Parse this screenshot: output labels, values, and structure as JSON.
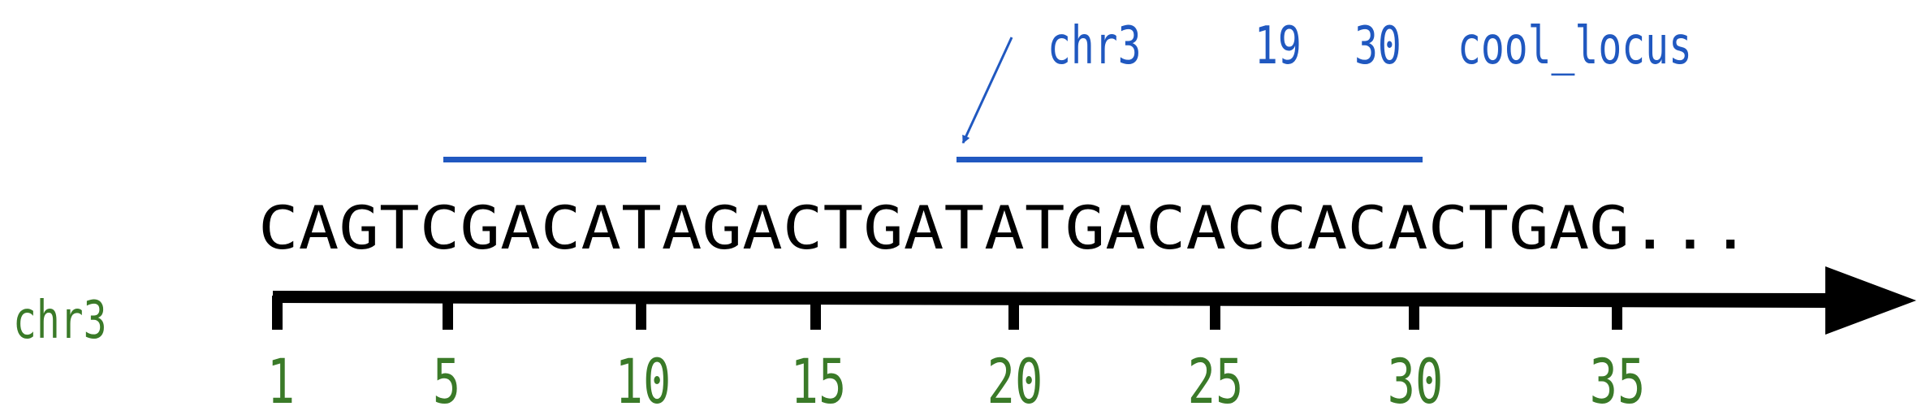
{
  "annotation": {
    "chrom": "chr3",
    "start": "19",
    "end": "30",
    "name": "cool_locus",
    "color": "#2058c0"
  },
  "sequence": "CAGTCGACATAGACTGATATGACACCACACTGAG...",
  "axis": {
    "chrom_label": "chr3",
    "ticks": [
      "1",
      "5",
      "10",
      "15",
      "20",
      "25",
      "30",
      "35"
    ],
    "color": "#3a7a28"
  }
}
